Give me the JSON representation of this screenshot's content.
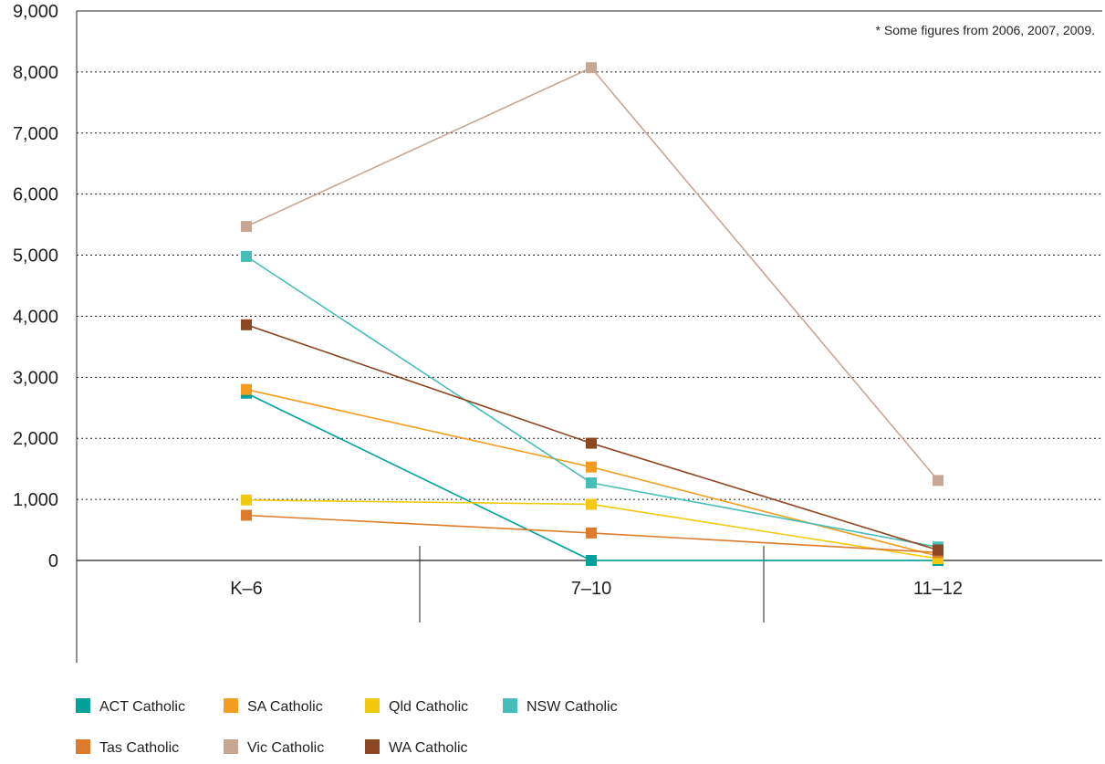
{
  "chart_data": {
    "type": "line",
    "title": "",
    "xlabel": "",
    "ylabel": "",
    "note": "* Some figures from 2006, 2007, 2009.",
    "categories": [
      "K–6",
      "7–10",
      "11–12"
    ],
    "ylim": [
      0,
      9000
    ],
    "yticks": [
      0,
      1000,
      2000,
      3000,
      4000,
      5000,
      6000,
      7000,
      8000,
      9000
    ],
    "ytick_labels": [
      "0",
      "1,000",
      "2,000",
      "3,000",
      "4,000",
      "5,000",
      "6,000",
      "7,000",
      "8,000",
      "9,000"
    ],
    "grid": "horizontal dotted",
    "legend_position": "bottom",
    "series": [
      {
        "name": "ACT Catholic",
        "color": "#00a19a",
        "values": [
          2740,
          0,
          0
        ]
      },
      {
        "name": "SA Catholic",
        "color": "#f39c1f",
        "values": [
          2800,
          1530,
          70
        ]
      },
      {
        "name": "Qld Catholic",
        "color": "#f3c910",
        "values": [
          990,
          920,
          30
        ]
      },
      {
        "name": "NSW Catholic",
        "color": "#46bdb6",
        "values": [
          4980,
          1270,
          220
        ]
      },
      {
        "name": "Tas Catholic",
        "color": "#dc7b2b",
        "values": [
          740,
          450,
          130
        ]
      },
      {
        "name": "Vic Catholic",
        "color": "#c7a693",
        "values": [
          5470,
          8070,
          1310
        ]
      },
      {
        "name": "WA Catholic",
        "color": "#8c4622",
        "values": [
          3860,
          1920,
          170
        ]
      }
    ]
  }
}
